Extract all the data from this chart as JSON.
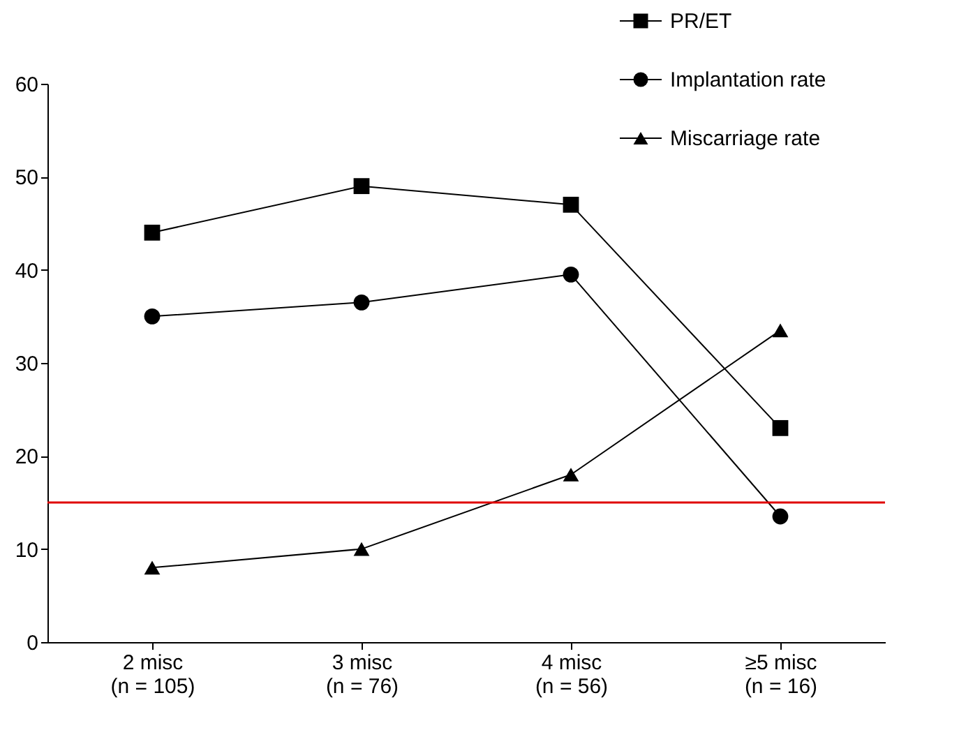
{
  "chart_data": {
    "type": "line",
    "categories": [
      "2 misc\n(n = 105)",
      "3 misc\n(n = 76)",
      "4 misc\n(n = 56)",
      "≥5 misc\n(n = 16)"
    ],
    "series": [
      {
        "name": "PR/ET",
        "color": "#000000",
        "marker": "square",
        "values": [
          44,
          49,
          47,
          23
        ]
      },
      {
        "name": "Implantation rate",
        "color": "#000000",
        "marker": "circle",
        "values": [
          35,
          36.5,
          39.5,
          13.5
        ]
      },
      {
        "name": "Miscarriage rate",
        "color": "#000000",
        "marker": "triangle",
        "values": [
          8,
          10,
          18,
          33.5
        ]
      }
    ],
    "ylim": [
      0,
      60
    ],
    "yticks": [
      0,
      10,
      20,
      30,
      40,
      50,
      60
    ],
    "ref_lines": [
      {
        "axis": "y",
        "value": 15,
        "color": "#e00000",
        "line_style": "solid"
      }
    ],
    "grid": false,
    "legend": "top right",
    "line_style": "solid"
  }
}
